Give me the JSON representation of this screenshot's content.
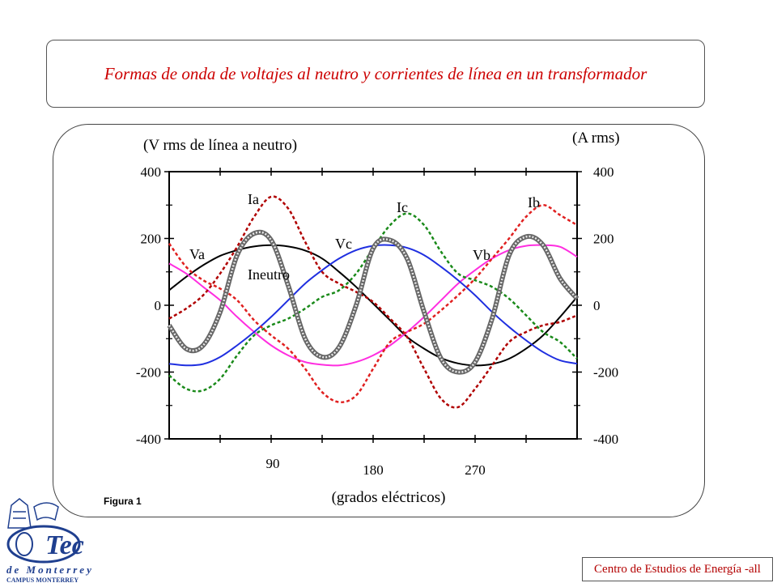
{
  "title": "Formas de onda de voltajes al neutro y corrientes de línea en un transformador",
  "figure_label": "Figura 1",
  "footer": "Centro de Estudios de Energía -all",
  "logo": {
    "name": "Tec de Monterrey",
    "main": "Tec",
    "sub": "de Monterrey",
    "campus": "CAMPUS MONTERREY"
  },
  "colors": {
    "title": "#cc0000",
    "footer": "#b30000",
    "logo": "#1f3f8f",
    "Va": "#000000",
    "Vb": "#ff2ee0",
    "Vc": "#1f2fe0",
    "Ia": "#b00000",
    "Ib": "#e02020",
    "Ic": "#1a8a1a",
    "Ineutro": "#8c8c8c"
  },
  "chart_data": {
    "type": "line",
    "left_axis_label": "(V rms de línea a neutro)",
    "right_axis_label": "(A rms)",
    "xlabel": "(grados eléctricos)",
    "xlim": [
      0,
      360
    ],
    "ylim": [
      -400,
      400
    ],
    "x_ticks": [
      90,
      180,
      270
    ],
    "y_ticks": [
      400,
      200,
      0,
      -200,
      -400
    ],
    "series": [
      {
        "name": "Va",
        "style": "solid",
        "x": [
          0,
          15,
          30,
          45,
          60,
          75,
          90,
          105,
          120,
          135,
          150,
          165,
          180,
          195,
          210,
          225,
          240,
          255,
          270,
          285,
          300,
          315,
          330,
          345,
          360
        ],
        "y": [
          45,
          85,
          120,
          148,
          165,
          176,
          180,
          176,
          164,
          140,
          100,
          55,
          5,
          -45,
          -95,
          -130,
          -158,
          -174,
          -180,
          -176,
          -160,
          -130,
          -90,
          -35,
          25
        ]
      },
      {
        "name": "Vb",
        "style": "solid",
        "x": [
          0,
          15,
          30,
          45,
          60,
          75,
          90,
          105,
          120,
          135,
          150,
          165,
          180,
          195,
          210,
          225,
          240,
          255,
          270,
          285,
          300,
          315,
          330,
          345,
          360
        ],
        "y": [
          125,
          95,
          55,
          15,
          -35,
          -80,
          -120,
          -150,
          -170,
          -178,
          -180,
          -170,
          -150,
          -120,
          -80,
          -35,
          15,
          65,
          105,
          140,
          165,
          178,
          180,
          175,
          145
        ]
      },
      {
        "name": "Vc",
        "style": "solid",
        "x": [
          0,
          15,
          30,
          45,
          60,
          75,
          90,
          105,
          120,
          135,
          150,
          165,
          180,
          195,
          210,
          225,
          240,
          255,
          270,
          285,
          300,
          315,
          330,
          345,
          360
        ],
        "y": [
          -175,
          -180,
          -176,
          -155,
          -120,
          -80,
          -35,
          15,
          65,
          105,
          140,
          165,
          178,
          180,
          172,
          150,
          115,
          75,
          30,
          -20,
          -65,
          -105,
          -140,
          -165,
          -175
        ]
      },
      {
        "name": "Ia",
        "style": "dashed",
        "x": [
          0,
          15,
          30,
          45,
          60,
          75,
          90,
          105,
          120,
          135,
          150,
          165,
          180,
          195,
          210,
          225,
          240,
          255,
          270,
          285,
          300,
          315,
          330,
          345,
          360
        ],
        "y": [
          -40,
          -10,
          30,
          95,
          175,
          265,
          325,
          290,
          190,
          100,
          65,
          40,
          10,
          -40,
          -95,
          -190,
          -280,
          -305,
          -250,
          -180,
          -110,
          -80,
          -60,
          -50,
          -30
        ]
      },
      {
        "name": "Ib",
        "style": "dashed",
        "x": [
          0,
          15,
          30,
          45,
          60,
          75,
          90,
          105,
          120,
          135,
          150,
          165,
          180,
          195,
          210,
          225,
          240,
          255,
          270,
          285,
          300,
          315,
          330,
          345,
          360
        ],
        "y": [
          185,
          115,
          75,
          50,
          15,
          -45,
          -90,
          -130,
          -190,
          -260,
          -290,
          -270,
          -190,
          -110,
          -80,
          -55,
          -15,
          30,
          80,
          140,
          200,
          265,
          300,
          270,
          240
        ]
      },
      {
        "name": "Ic",
        "style": "dashed",
        "x": [
          0,
          15,
          30,
          45,
          60,
          75,
          90,
          105,
          120,
          135,
          150,
          165,
          180,
          195,
          210,
          225,
          240,
          255,
          270,
          285,
          300,
          315,
          330,
          345,
          360
        ],
        "y": [
          -210,
          -250,
          -255,
          -220,
          -150,
          -90,
          -60,
          -40,
          -10,
          25,
          45,
          95,
          170,
          240,
          275,
          240,
          160,
          95,
          75,
          55,
          20,
          -30,
          -80,
          -110,
          -160
        ]
      },
      {
        "name": "Ineutro",
        "style": "solid-thick",
        "x": [
          0,
          15,
          30,
          45,
          60,
          75,
          90,
          105,
          120,
          135,
          150,
          165,
          180,
          195,
          210,
          225,
          240,
          255,
          270,
          285,
          300,
          315,
          330,
          345,
          360
        ],
        "y": [
          -60,
          -130,
          -120,
          -20,
          150,
          215,
          195,
          60,
          -100,
          -155,
          -125,
          0,
          170,
          195,
          140,
          -20,
          -160,
          -200,
          -170,
          -40,
          150,
          205,
          180,
          80,
          20
        ]
      }
    ]
  }
}
